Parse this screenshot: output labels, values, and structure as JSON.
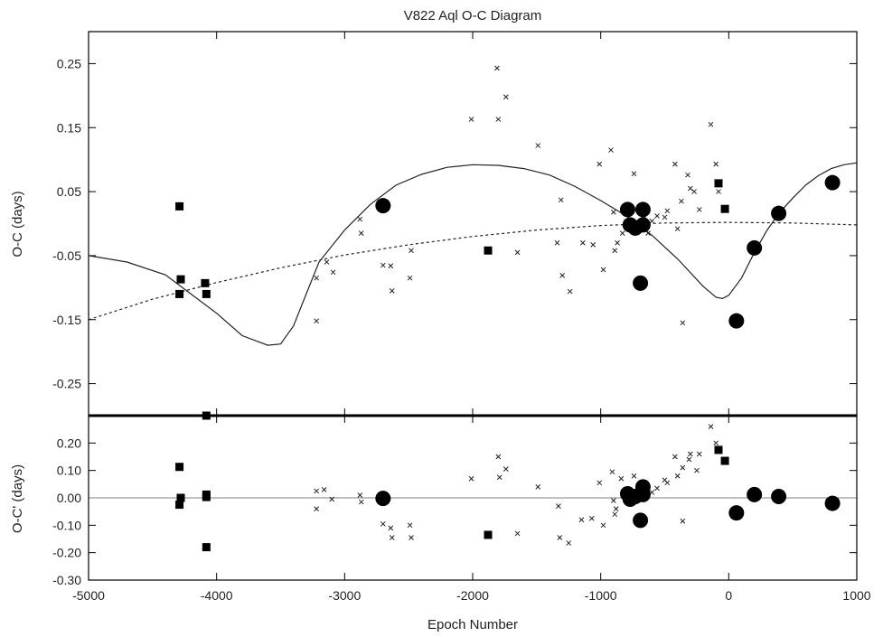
{
  "chart_data": [
    {
      "type": "scatter",
      "title": "V822 Aql O-C Diagram",
      "xlabel": "",
      "ylabel": "O-C (days)",
      "xlim": [
        -5000,
        1000
      ],
      "ylim": [
        -0.3,
        0.3
      ],
      "xticks": [
        -5000,
        -4000,
        -3000,
        -2000,
        -1000,
        0,
        1000
      ],
      "yticks": [
        "0.25",
        "0.15",
        "0.05",
        "-0.05",
        "-0.15",
        "-0.25"
      ],
      "series": [
        {
          "marker": "x",
          "points": [
            [
              -3220,
              -0.085
            ],
            [
              -3220,
              -0.152
            ],
            [
              -3140,
              -0.06
            ],
            [
              -3090,
              -0.076
            ],
            [
              -2880,
              0.007
            ],
            [
              -2870,
              -0.015
            ],
            [
              -2700,
              -0.065
            ],
            [
              -2640,
              -0.066
            ],
            [
              -2630,
              -0.105
            ],
            [
              -2490,
              -0.085
            ],
            [
              -2480,
              -0.042
            ],
            [
              -2010,
              0.163
            ],
            [
              -1810,
              0.243
            ],
            [
              -1800,
              0.163
            ],
            [
              -1740,
              0.198
            ],
            [
              -1650,
              -0.045
            ],
            [
              -1490,
              0.122
            ],
            [
              -1340,
              -0.03
            ],
            [
              -1310,
              0.037
            ],
            [
              -1300,
              -0.081
            ],
            [
              -1240,
              -0.106
            ],
            [
              -1140,
              -0.03
            ],
            [
              -1060,
              -0.033
            ],
            [
              -1010,
              0.093
            ],
            [
              -980,
              -0.072
            ],
            [
              -920,
              0.115
            ],
            [
              -900,
              0.018
            ],
            [
              -890,
              -0.042
            ],
            [
              -870,
              -0.03
            ],
            [
              -830,
              -0.015
            ],
            [
              -800,
              0.003
            ],
            [
              -740,
              0.078
            ],
            [
              -660,
              0.011
            ],
            [
              -630,
              -0.015
            ],
            [
              -600,
              0.004
            ],
            [
              -560,
              0.012
            ],
            [
              -500,
              0.01
            ],
            [
              -480,
              0.02
            ],
            [
              -420,
              0.093
            ],
            [
              -400,
              -0.008
            ],
            [
              -370,
              0.035
            ],
            [
              -360,
              -0.155
            ],
            [
              -320,
              0.076
            ],
            [
              -300,
              0.055
            ],
            [
              -270,
              0.05
            ],
            [
              -230,
              0.022
            ],
            [
              -140,
              0.155
            ],
            [
              -100,
              0.093
            ],
            [
              -80,
              0.05
            ]
          ]
        },
        {
          "marker": "square",
          "points": [
            [
              -4290,
              0.027
            ],
            [
              -4290,
              -0.11
            ],
            [
              -4280,
              -0.087
            ],
            [
              -4090,
              -0.093
            ],
            [
              -4080,
              -0.11
            ],
            [
              -4080,
              -0.3
            ],
            [
              -1880,
              -0.042
            ],
            [
              -80,
              0.063
            ],
            [
              -30,
              0.023
            ]
          ]
        },
        {
          "marker": "circle",
          "points": [
            [
              -2700,
              0.028
            ],
            [
              -790,
              0.022
            ],
            [
              -770,
              -0.002
            ],
            [
              -730,
              -0.007
            ],
            [
              -690,
              -0.093
            ],
            [
              -670,
              0.022
            ],
            [
              -670,
              -0.002
            ],
            [
              60,
              -0.152
            ],
            [
              200,
              -0.038
            ],
            [
              390,
              0.016
            ],
            [
              810,
              0.064
            ]
          ]
        }
      ],
      "fit_curves": [
        {
          "style": "solid",
          "points": [
            [
              -5000,
              -0.05
            ],
            [
              -4700,
              -0.06
            ],
            [
              -4400,
              -0.08
            ],
            [
              -4200,
              -0.11
            ],
            [
              -4000,
              -0.14
            ],
            [
              -3800,
              -0.175
            ],
            [
              -3600,
              -0.19
            ],
            [
              -3500,
              -0.188
            ],
            [
              -3400,
              -0.16
            ],
            [
              -3300,
              -0.11
            ],
            [
              -3200,
              -0.06
            ],
            [
              -3000,
              -0.01
            ],
            [
              -2800,
              0.03
            ],
            [
              -2600,
              0.06
            ],
            [
              -2400,
              0.077
            ],
            [
              -2200,
              0.088
            ],
            [
              -2000,
              0.092
            ],
            [
              -1800,
              0.091
            ],
            [
              -1600,
              0.086
            ],
            [
              -1400,
              0.076
            ],
            [
              -1200,
              0.058
            ],
            [
              -1000,
              0.036
            ],
            [
              -800,
              0.012
            ],
            [
              -600,
              -0.018
            ],
            [
              -400,
              -0.055
            ],
            [
              -200,
              -0.098
            ],
            [
              -100,
              -0.115
            ],
            [
              -50,
              -0.117
            ],
            [
              0,
              -0.112
            ],
            [
              100,
              -0.085
            ],
            [
              200,
              -0.045
            ],
            [
              300,
              -0.01
            ],
            [
              400,
              0.018
            ],
            [
              500,
              0.04
            ],
            [
              600,
              0.06
            ],
            [
              700,
              0.075
            ],
            [
              800,
              0.086
            ],
            [
              900,
              0.092
            ],
            [
              1000,
              0.095
            ]
          ]
        },
        {
          "style": "dotted",
          "points": [
            [
              -5000,
              -0.15
            ],
            [
              -4500,
              -0.118
            ],
            [
              -4000,
              -0.092
            ],
            [
              -3500,
              -0.069
            ],
            [
              -3000,
              -0.049
            ],
            [
              -2500,
              -0.033
            ],
            [
              -2000,
              -0.02
            ],
            [
              -1500,
              -0.01
            ],
            [
              -1000,
              -0.003
            ],
            [
              -500,
              0.001
            ],
            [
              0,
              0.002
            ],
            [
              500,
              0.001
            ],
            [
              1000,
              -0.002
            ]
          ]
        }
      ]
    },
    {
      "type": "scatter",
      "title": "",
      "xlabel": "Epoch Number",
      "ylabel": "O-C' (days)",
      "xlim": [
        -5000,
        1000
      ],
      "ylim": [
        -0.3,
        0.3
      ],
      "xticks": [
        -5000,
        -4000,
        -3000,
        -2000,
        -1000,
        0,
        1000
      ],
      "yticks": [
        "0.20",
        "0.10",
        "0.00",
        "-0.10",
        "-0.20",
        "-0.30"
      ],
      "zero_line": true,
      "series": [
        {
          "marker": "x",
          "points": [
            [
              -3220,
              0.025
            ],
            [
              -3220,
              -0.04
            ],
            [
              -3160,
              0.03
            ],
            [
              -3100,
              -0.005
            ],
            [
              -2880,
              0.01
            ],
            [
              -2870,
              -0.015
            ],
            [
              -2700,
              -0.095
            ],
            [
              -2640,
              -0.11
            ],
            [
              -2630,
              -0.145
            ],
            [
              -2490,
              -0.1
            ],
            [
              -2480,
              -0.145
            ],
            [
              -2010,
              0.07
            ],
            [
              -1800,
              0.15
            ],
            [
              -1790,
              0.075
            ],
            [
              -1740,
              0.105
            ],
            [
              -1650,
              -0.13
            ],
            [
              -1490,
              0.04
            ],
            [
              -1330,
              -0.03
            ],
            [
              -1320,
              -0.145
            ],
            [
              -1250,
              -0.165
            ],
            [
              -1150,
              -0.08
            ],
            [
              -1070,
              -0.075
            ],
            [
              -1010,
              0.055
            ],
            [
              -980,
              -0.1
            ],
            [
              -910,
              0.095
            ],
            [
              -900,
              -0.01
            ],
            [
              -890,
              -0.06
            ],
            [
              -880,
              -0.04
            ],
            [
              -840,
              0.07
            ],
            [
              -740,
              0.08
            ],
            [
              -660,
              0.01
            ],
            [
              -600,
              0.02
            ],
            [
              -560,
              0.035
            ],
            [
              -500,
              0.065
            ],
            [
              -480,
              0.055
            ],
            [
              -420,
              0.15
            ],
            [
              -400,
              0.08
            ],
            [
              -360,
              -0.085
            ],
            [
              -360,
              0.11
            ],
            [
              -310,
              0.14
            ],
            [
              -300,
              0.16
            ],
            [
              -250,
              0.1
            ],
            [
              -230,
              0.16
            ],
            [
              -140,
              0.26
            ],
            [
              -100,
              0.2
            ],
            [
              -80,
              0.17
            ]
          ]
        },
        {
          "marker": "square",
          "points": [
            [
              -4290,
              0.113
            ],
            [
              -4290,
              -0.025
            ],
            [
              -4280,
              0.0
            ],
            [
              -4080,
              0.012
            ],
            [
              -4080,
              0.003
            ],
            [
              -4080,
              -0.18
            ],
            [
              -1880,
              -0.135
            ],
            [
              -80,
              0.175
            ],
            [
              -30,
              0.135
            ]
          ]
        },
        {
          "marker": "circle",
          "points": [
            [
              -2700,
              -0.002
            ],
            [
              -790,
              0.015
            ],
            [
              -770,
              -0.005
            ],
            [
              -730,
              0.005
            ],
            [
              -690,
              -0.082
            ],
            [
              -670,
              0.04
            ],
            [
              -670,
              0.012
            ],
            [
              60,
              -0.055
            ],
            [
              200,
              0.012
            ],
            [
              390,
              0.005
            ],
            [
              810,
              -0.02
            ]
          ]
        }
      ]
    }
  ]
}
